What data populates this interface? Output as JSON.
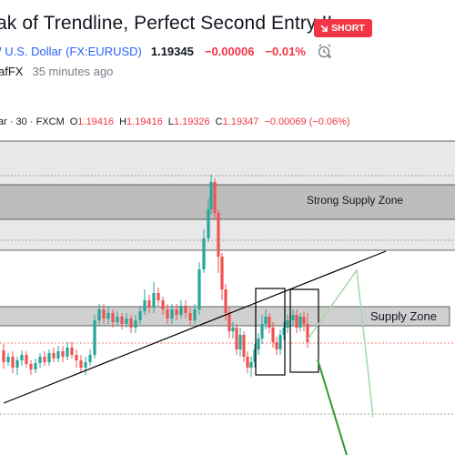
{
  "idea": {
    "title": "ak of Trendline, Perfect Second Entry !!",
    "badge": "SHORT"
  },
  "symbol": {
    "name": "/ U.S. Dollar",
    "code": "(FX:EURUSD)",
    "price": "1.19345",
    "change": "−0.00006",
    "change_pct": "−0.01%",
    "alert_icon": "alarm-clock-plus-icon"
  },
  "author": {
    "name": "afFX",
    "time": "35 minutes ago"
  },
  "legend": {
    "symbol": "ar · 30 · FXCM",
    "o_label": "O",
    "o_value": "1.19416",
    "h_label": "H",
    "h_value": "1.19416",
    "l_label": "L",
    "l_value": "1.19326",
    "c_label": "C",
    "c_value": "1.19347",
    "change": "−0.00069 (−0.06%)"
  },
  "chart_data": {
    "type": "candlestick",
    "zones": [
      {
        "label": "Strong Supply Zone"
      },
      {
        "label": "Supply Zone"
      }
    ],
    "colors": {
      "up": "#26a69a",
      "down": "#ef5350",
      "line": "#000000",
      "projection_light": "#a5d6a7",
      "projection_dark": "#2e9b2e"
    }
  }
}
